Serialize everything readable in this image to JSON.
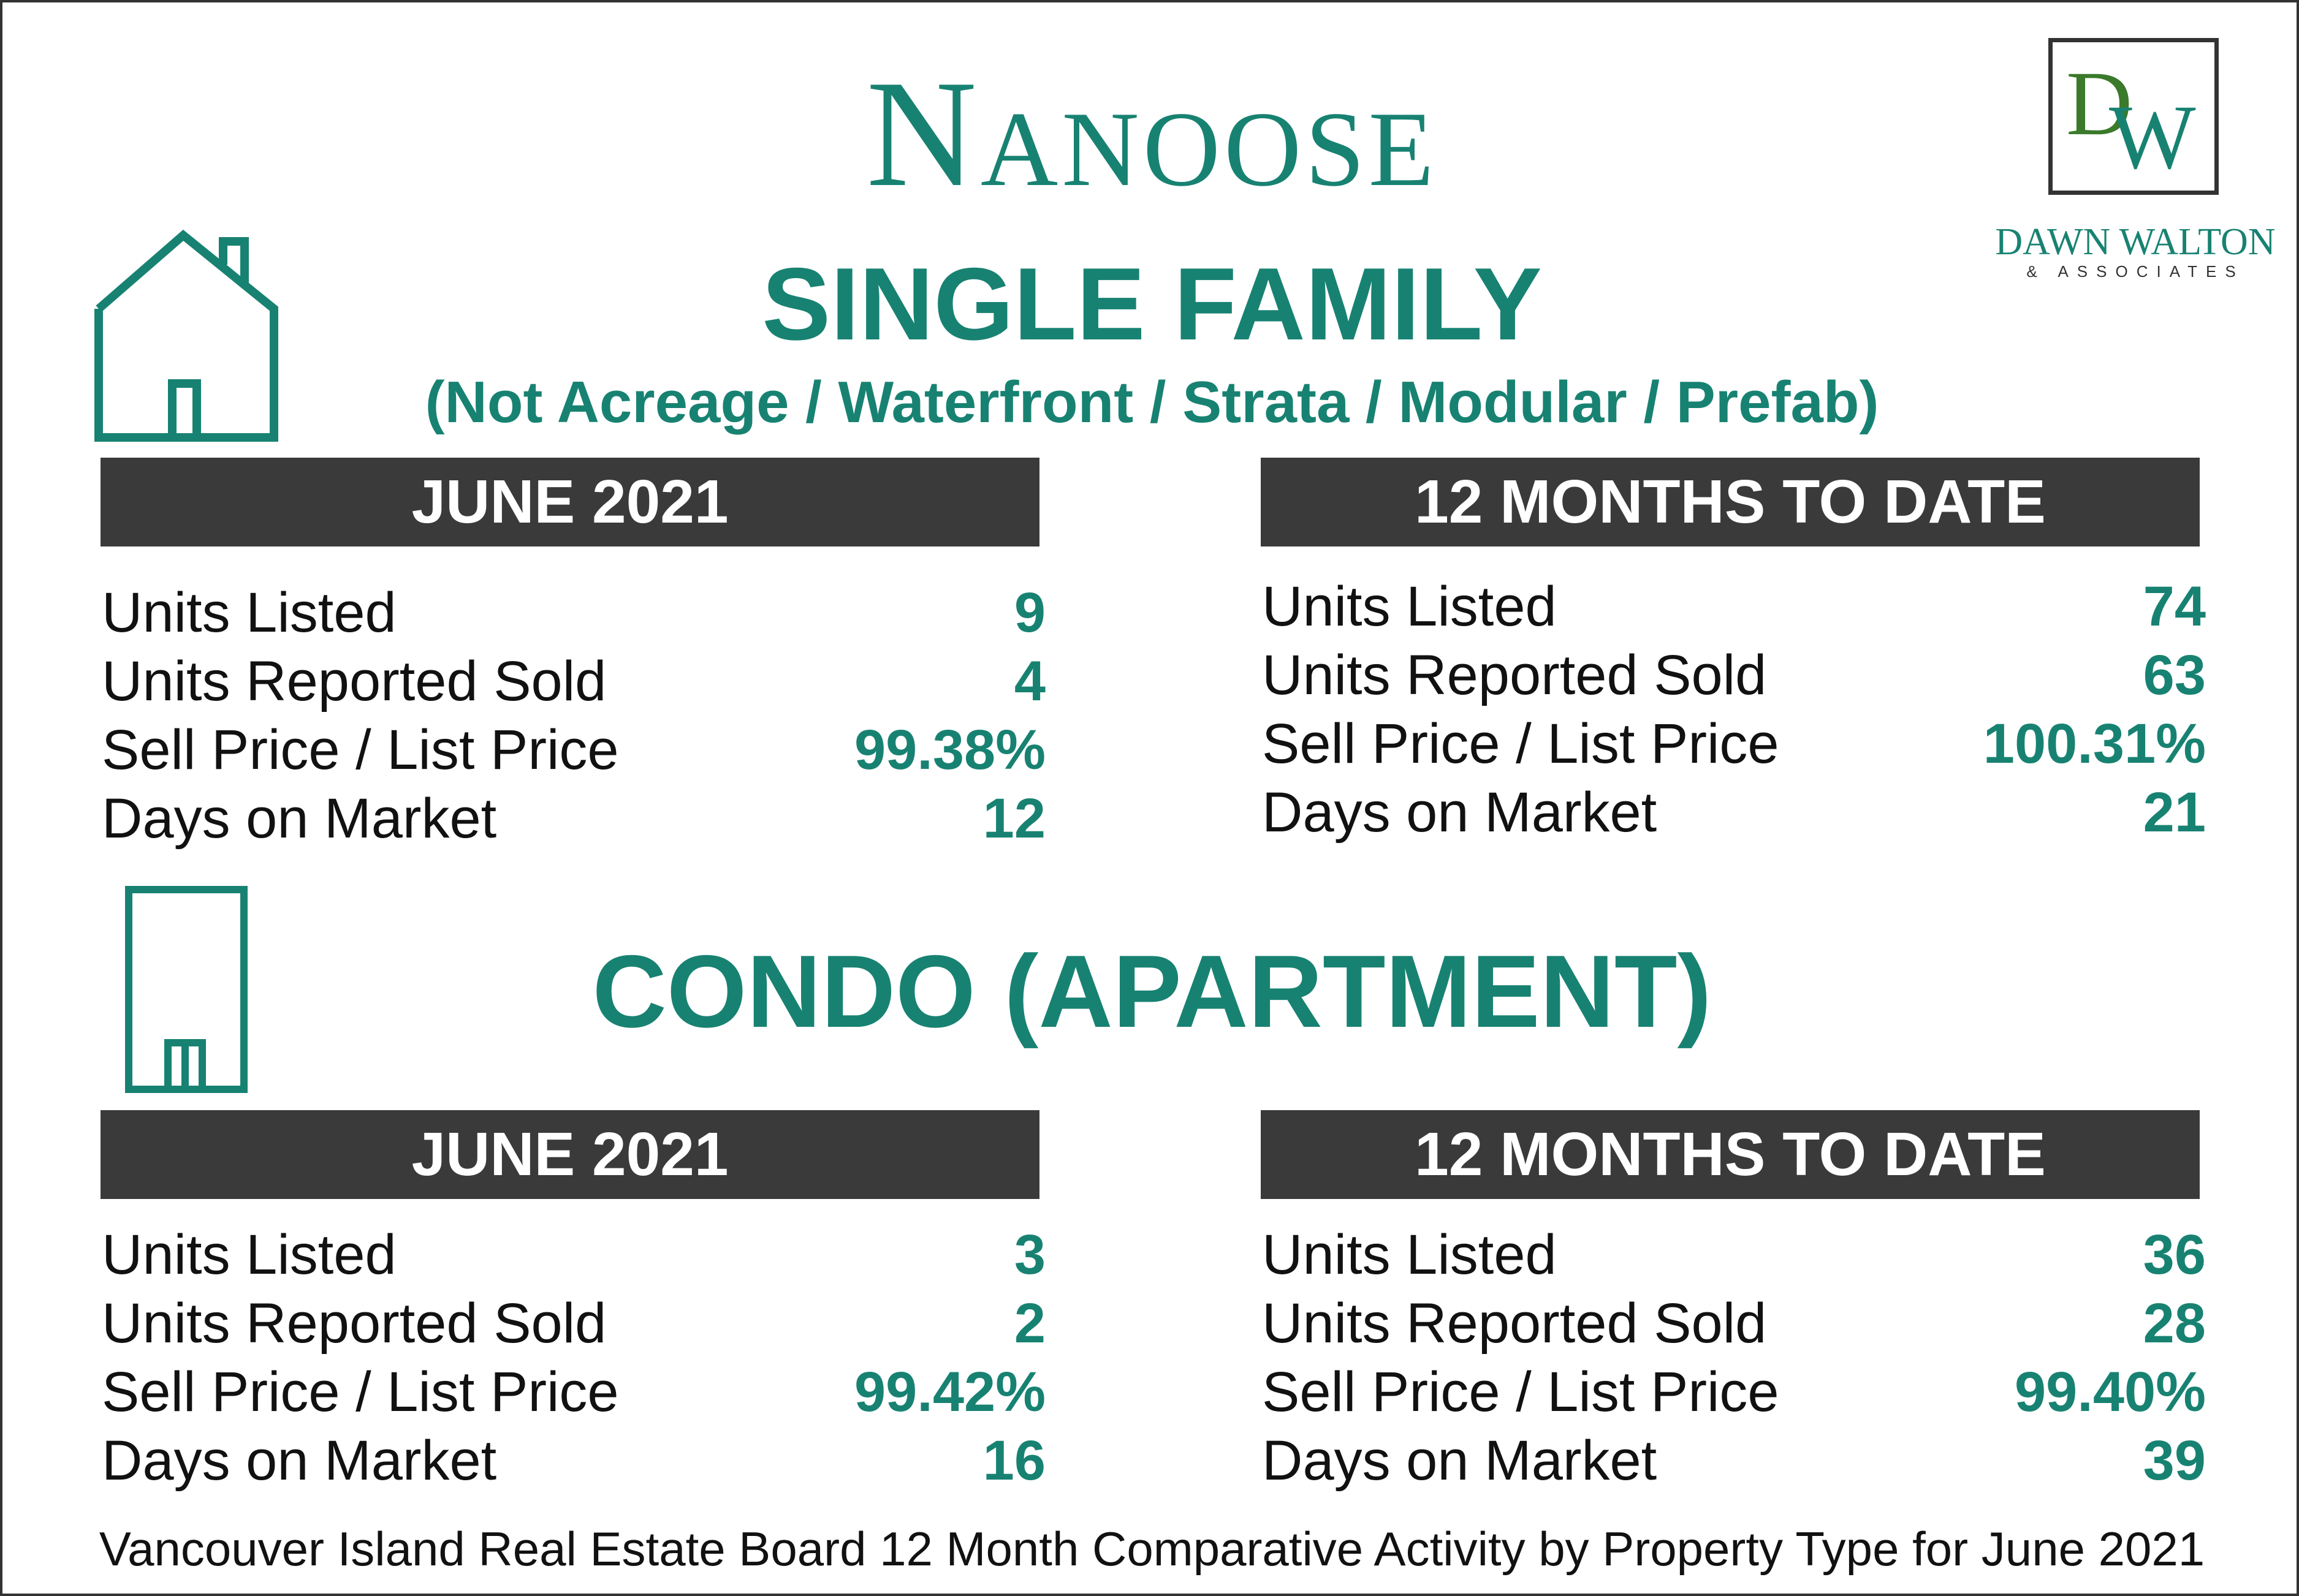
{
  "title": "Nanoose",
  "logo": {
    "monogram_d": "D",
    "monogram_w": "W",
    "name": "DAWN WALTON",
    "sub": "& ASSOCIATES"
  },
  "single_family": {
    "title": "SINGLE FAMILY",
    "subtitle": "(Not Acreage / Waterfront / Strata / Modular / Prefab)",
    "icon": "house-icon",
    "month": {
      "header": "JUNE 2021",
      "rows": [
        {
          "label": "Units Listed",
          "value": "9"
        },
        {
          "label": "Units Reported Sold",
          "value": "4"
        },
        {
          "label": "Sell Price / List Price",
          "value": "99.38%"
        },
        {
          "label": "Days on Market",
          "value": "12"
        }
      ]
    },
    "ytd": {
      "header": "12 MONTHS TO DATE",
      "rows": [
        {
          "label": "Units Listed",
          "value": "74"
        },
        {
          "label": "Units Reported Sold",
          "value": "63"
        },
        {
          "label": "Sell Price / List Price",
          "value": "100.31%"
        },
        {
          "label": "Days on Market",
          "value": "21"
        }
      ]
    }
  },
  "condo": {
    "title": "CONDO (APARTMENT)",
    "icon": "apartment-building-icon",
    "month": {
      "header": "JUNE 2021",
      "rows": [
        {
          "label": "Units Listed",
          "value": "3"
        },
        {
          "label": "Units Reported Sold",
          "value": "2"
        },
        {
          "label": "Sell Price / List Price",
          "value": "99.42%"
        },
        {
          "label": "Days on Market",
          "value": "16"
        }
      ]
    },
    "ytd": {
      "header": "12 MONTHS TO DATE",
      "rows": [
        {
          "label": "Units Listed",
          "value": "36"
        },
        {
          "label": "Units Reported Sold",
          "value": "28"
        },
        {
          "label": "Sell Price / List Price",
          "value": "99.40%"
        },
        {
          "label": "Days on Market",
          "value": "39"
        }
      ]
    }
  },
  "footer": "Vancouver Island Real Estate Board 12 Month Comparative Activity by Property Type for June 2021",
  "colors": {
    "accent": "#188272",
    "header_bar": "#3a3a3a",
    "text": "#111111"
  }
}
